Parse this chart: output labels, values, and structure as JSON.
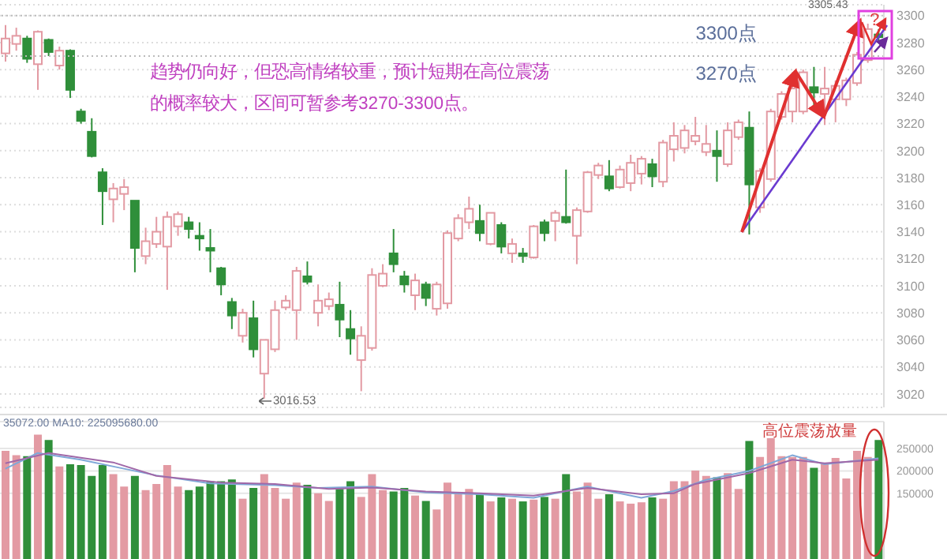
{
  "chart_data": [
    {
      "type": "candlestick",
      "categories": [
        null,
        null,
        null,
        null,
        null,
        null,
        null,
        null,
        null,
        null,
        null,
        null,
        null,
        null,
        null,
        null,
        null,
        null,
        null,
        null,
        null,
        null,
        null,
        null,
        null,
        null,
        null,
        null,
        null,
        null,
        null,
        null,
        null,
        null,
        null,
        null,
        null,
        null,
        null,
        null,
        null,
        null,
        null,
        null,
        null,
        null,
        null,
        null,
        null,
        null,
        null,
        null,
        null,
        null,
        null,
        null,
        null,
        null,
        null,
        null,
        null,
        null,
        null,
        null,
        null,
        null,
        null,
        null,
        null,
        null,
        null,
        null,
        null,
        null,
        null,
        null,
        null,
        null,
        null,
        null,
        null,
        null
      ],
      "ohlc": [
        [
          3272,
          3293,
          3266,
          3283
        ],
        [
          3279,
          3291,
          3274,
          3285
        ],
        [
          3283,
          3285,
          3265,
          3268
        ],
        [
          3264,
          3289,
          3245,
          3288
        ],
        [
          3282,
          3283,
          3270,
          3273
        ],
        [
          3263,
          3277,
          3260,
          3274
        ],
        [
          3274,
          3275,
          3239,
          3245
        ],
        [
          3229,
          3231,
          3220,
          3222
        ],
        [
          3214,
          3224,
          3195,
          3196
        ],
        [
          3184,
          3187,
          3145,
          3170
        ],
        [
          3164,
          3176,
          3147,
          3172
        ],
        [
          3168,
          3179,
          3156,
          3173
        ],
        [
          3163,
          3163,
          3110,
          3128
        ],
        [
          3122,
          3143,
          3116,
          3133
        ],
        [
          3131,
          3151,
          3128,
          3140
        ],
        [
          3129,
          3155,
          3097,
          3151
        ],
        [
          3144,
          3155,
          3137,
          3153
        ],
        [
          3147,
          3151,
          3135,
          3142
        ],
        [
          3137,
          3147,
          3126,
          3135
        ],
        [
          3128,
          3142,
          3110,
          3126
        ],
        [
          3113,
          3114,
          3093,
          3101
        ],
        [
          3088,
          3091,
          3068,
          3078
        ],
        [
          3063,
          3083,
          3058,
          3080
        ],
        [
          3076,
          3089,
          3047,
          3053
        ],
        [
          3035,
          3060,
          3016.53,
          3060
        ],
        [
          3053,
          3089,
          3051,
          3082
        ],
        [
          3084,
          3093,
          3082,
          3089
        ],
        [
          3082,
          3114,
          3060,
          3111
        ],
        [
          3107,
          3118,
          3101,
          3103
        ],
        [
          3080,
          3101,
          3070,
          3089
        ],
        [
          3085,
          3095,
          3082,
          3090
        ],
        [
          3086,
          3103,
          3062,
          3075
        ],
        [
          3068,
          3082,
          3049,
          3061
        ],
        [
          3045,
          3070,
          3022,
          3063
        ],
        [
          3054,
          3113,
          3052,
          3108
        ],
        [
          3100,
          3116,
          3099,
          3109
        ],
        [
          3124,
          3142,
          3110,
          3116
        ],
        [
          3107,
          3111,
          3095,
          3101
        ],
        [
          3093,
          3109,
          3082,
          3104
        ],
        [
          3101,
          3103,
          3085,
          3091
        ],
        [
          3083,
          3103,
          3078,
          3101
        ],
        [
          3087,
          3141,
          3083,
          3139
        ],
        [
          3135,
          3153,
          3133,
          3150
        ],
        [
          3147,
          3166,
          3142,
          3157
        ],
        [
          3148,
          3160,
          3133,
          3139
        ],
        [
          3131,
          3154,
          3130,
          3154
        ],
        [
          3145,
          3147,
          3124,
          3129
        ],
        [
          3124,
          3135,
          3117,
          3131
        ],
        [
          3124,
          3128,
          3117,
          3122
        ],
        [
          3121,
          3145,
          3120,
          3144
        ],
        [
          3147,
          3149,
          3133,
          3139
        ],
        [
          3148,
          3156,
          3133,
          3154
        ],
        [
          3151,
          3186,
          3146,
          3147
        ],
        [
          3137,
          3158,
          3116,
          3156
        ],
        [
          3155,
          3185,
          3154,
          3184
        ],
        [
          3182,
          3191,
          3179,
          3189
        ],
        [
          3181,
          3193,
          3170,
          3172
        ],
        [
          3173,
          3189,
          3172,
          3186
        ],
        [
          3176,
          3197,
          3170,
          3191
        ],
        [
          3183,
          3196,
          3175,
          3194
        ],
        [
          3190,
          3194,
          3173,
          3181
        ],
        [
          3177,
          3208,
          3173,
          3206
        ],
        [
          3201,
          3221,
          3192,
          3211
        ],
        [
          3202,
          3219,
          3198,
          3215
        ],
        [
          3207,
          3225,
          3204,
          3211
        ],
        [
          3199,
          3219,
          3196,
          3205
        ],
        [
          3200,
          3215,
          3177,
          3196
        ],
        [
          3190,
          3221,
          3188,
          3215
        ],
        [
          3210,
          3223,
          3208,
          3221
        ],
        [
          3217,
          3229,
          3138,
          3175
        ],
        [
          3158,
          3187,
          3154,
          3185
        ],
        [
          3179,
          3231,
          3177,
          3229
        ],
        [
          3225,
          3244,
          3223,
          3242
        ],
        [
          3229,
          3258,
          3221,
          3246
        ],
        [
          3229,
          3260,
          3227,
          3258
        ],
        [
          3247,
          3262,
          3231,
          3243
        ],
        [
          3242,
          3262,
          3219,
          3246
        ],
        [
          3238,
          3252,
          3221,
          3248
        ],
        [
          3238,
          3254,
          3233,
          3252
        ],
        [
          3250,
          3273,
          3248,
          3271
        ],
        [
          3267,
          3294,
          3265,
          3290
        ],
        [
          3286,
          3290,
          3281,
          3284
        ]
      ],
      "colors": [
        "#e39aa3",
        "#e39aa3",
        "#2f8f3a",
        "#e39aa3",
        "#2f8f3a",
        "#e39aa3",
        "#2f8f3a",
        "#2f8f3a",
        "#2f8f3a",
        "#2f8f3a",
        "#e39aa3",
        "#e39aa3",
        "#2f8f3a",
        "#e39aa3",
        "#e39aa3",
        "#e39aa3",
        "#e39aa3",
        "#2f8f3a",
        "#2f8f3a",
        "#2f8f3a",
        "#2f8f3a",
        "#2f8f3a",
        "#e39aa3",
        "#2f8f3a",
        "#e39aa3",
        "#e39aa3",
        "#e39aa3",
        "#e39aa3",
        "#2f8f3a",
        "#e39aa3",
        "#e39aa3",
        "#2f8f3a",
        "#2f8f3a",
        "#e39aa3",
        "#e39aa3",
        "#e39aa3",
        "#2f8f3a",
        "#2f8f3a",
        "#e39aa3",
        "#2f8f3a",
        "#e39aa3",
        "#e39aa3",
        "#e39aa3",
        "#e39aa3",
        "#2f8f3a",
        "#e39aa3",
        "#2f8f3a",
        "#e39aa3",
        "#2f8f3a",
        "#e39aa3",
        "#2f8f3a",
        "#e39aa3",
        "#2f8f3a",
        "#e39aa3",
        "#e39aa3",
        "#e39aa3",
        "#2f8f3a",
        "#e39aa3",
        "#e39aa3",
        "#e39aa3",
        "#2f8f3a",
        "#e39aa3",
        "#e39aa3",
        "#e39aa3",
        "#e39aa3",
        "#e39aa3",
        "#2f8f3a",
        "#e39aa3",
        "#e39aa3",
        "#2f8f3a",
        "#e39aa3",
        "#e39aa3",
        "#e39aa3",
        "#e39aa3",
        "#e39aa3",
        "#2f8f3a",
        "#e39aa3",
        "#e39aa3",
        "#e39aa3",
        "#e39aa3",
        "#e39aa3",
        "#2f8f3a"
      ],
      "ylim": [
        3010,
        3308
      ],
      "yticks": [
        3020,
        3040,
        3060,
        3080,
        3100,
        3120,
        3140,
        3160,
        3180,
        3200,
        3220,
        3240,
        3260,
        3280,
        3300
      ],
      "grid": "y",
      "tick_labels": "y",
      "ref_lines": [
        {
          "axis": "y",
          "value": 3300,
          "label": "3300点",
          "color": "#bbbbbb",
          "line_style": "dotted"
        },
        {
          "axis": "y",
          "value": 3270,
          "label": "3270点",
          "color": "#bbbbbb",
          "line_style": "dotted"
        }
      ],
      "annotations": [
        "趋势仍向好，但恐高情绪较重，预计短期在高位震荡的概率较大，区间可暂参考3270-3300点。",
        "3016.53",
        "3305.43",
        "?"
      ]
    },
    {
      "type": "bar",
      "categories": [
        null,
        null,
        null,
        null,
        null,
        null,
        null,
        null,
        null,
        null,
        null,
        null,
        null,
        null,
        null,
        null,
        null,
        null,
        null,
        null,
        null,
        null,
        null,
        null,
        null,
        null,
        null,
        null,
        null,
        null,
        null,
        null,
        null,
        null,
        null,
        null,
        null,
        null,
        null,
        null,
        null,
        null,
        null,
        null,
        null,
        null,
        null,
        null,
        null,
        null,
        null,
        null,
        null,
        null,
        null,
        null,
        null,
        null,
        null,
        null,
        null,
        null,
        null,
        null,
        null,
        null,
        null,
        null,
        null,
        null,
        null,
        null,
        null,
        null,
        null,
        null,
        null,
        null,
        null,
        null,
        null,
        null
      ],
      "series": [
        {
          "type": "bar",
          "values": [
            245000,
            235000,
            233000,
            281000,
            269000,
            210000,
            215000,
            213000,
            189000,
            213000,
            193000,
            165000,
            189000,
            157000,
            171000,
            213000,
            165000,
            157000,
            165000,
            177000,
            177000,
            181000,
            138000,
            162000,
            193000,
            162000,
            138000,
            174000,
            169000,
            150000,
            133000,
            160000,
            177000,
            142000,
            193000,
            157000,
            154000,
            162000,
            145000,
            133000,
            114000,
            174000,
            148000,
            160000,
            150000,
            132000,
            141000,
            138000,
            132000,
            136000,
            142000,
            138000,
            193000,
            154000,
            174000,
            138000,
            148000,
            132000,
            127000,
            130000,
            141000,
            138000,
            177000,
            177000,
            201000,
            189000,
            186000,
            195000,
            160000,
            267000,
            231000,
            273000,
            233000,
            231000,
            231000,
            207000,
            217000,
            229000,
            183000,
            245000,
            231000,
            269000
          ],
          "colors": [
            "#e39aa3",
            "#e39aa3",
            "#2f8f3a",
            "#e39aa3",
            "#2f8f3a",
            "#e39aa3",
            "#2f8f3a",
            "#2f8f3a",
            "#2f8f3a",
            "#2f8f3a",
            "#e39aa3",
            "#e39aa3",
            "#2f8f3a",
            "#e39aa3",
            "#e39aa3",
            "#e39aa3",
            "#e39aa3",
            "#2f8f3a",
            "#2f8f3a",
            "#2f8f3a",
            "#2f8f3a",
            "#2f8f3a",
            "#e39aa3",
            "#2f8f3a",
            "#e39aa3",
            "#e39aa3",
            "#e39aa3",
            "#e39aa3",
            "#2f8f3a",
            "#e39aa3",
            "#e39aa3",
            "#2f8f3a",
            "#2f8f3a",
            "#e39aa3",
            "#e39aa3",
            "#e39aa3",
            "#2f8f3a",
            "#2f8f3a",
            "#e39aa3",
            "#2f8f3a",
            "#e39aa3",
            "#e39aa3",
            "#e39aa3",
            "#e39aa3",
            "#2f8f3a",
            "#e39aa3",
            "#2f8f3a",
            "#e39aa3",
            "#2f8f3a",
            "#e39aa3",
            "#2f8f3a",
            "#e39aa3",
            "#2f8f3a",
            "#e39aa3",
            "#e39aa3",
            "#e39aa3",
            "#2f8f3a",
            "#e39aa3",
            "#e39aa3",
            "#e39aa3",
            "#2f8f3a",
            "#e39aa3",
            "#e39aa3",
            "#e39aa3",
            "#e39aa3",
            "#e39aa3",
            "#2f8f3a",
            "#e39aa3",
            "#e39aa3",
            "#2f8f3a",
            "#e39aa3",
            "#e39aa3",
            "#e39aa3",
            "#e39aa3",
            "#e39aa3",
            "#2f8f3a",
            "#e39aa3",
            "#e39aa3",
            "#e39aa3",
            "#e39aa3",
            "#e39aa3",
            "#2f8f3a"
          ]
        },
        {
          "type": "line",
          "color": "#7fa8d8",
          "values": [
            205000,
            null,
            null,
            240000,
            null,
            null,
            null,
            225000,
            null,
            null,
            null,
            205000,
            null,
            null,
            190000,
            null,
            null,
            null,
            null,
            172000,
            null,
            null,
            null,
            null,
            null,
            168000,
            null,
            null,
            null,
            162000,
            null,
            null,
            null,
            null,
            165000,
            null,
            null,
            null,
            null,
            152000,
            null,
            null,
            null,
            null,
            148000,
            null,
            null,
            null,
            null,
            140000,
            null,
            null,
            null,
            null,
            165000,
            null,
            null,
            null,
            null,
            140000,
            null,
            null,
            155000,
            null,
            null,
            180000,
            null,
            null,
            null,
            200000,
            null,
            null,
            null,
            235000,
            null,
            null,
            215000,
            null,
            null,
            null,
            null,
            228000
          ]
        },
        {
          "type": "line",
          "color": "#a068a8",
          "values": [
            217000,
            null,
            null,
            null,
            240000,
            null,
            null,
            null,
            null,
            null,
            219000,
            null,
            null,
            null,
            189000,
            null,
            null,
            null,
            null,
            null,
            174000,
            null,
            null,
            null,
            null,
            171000,
            null,
            null,
            null,
            null,
            160000,
            null,
            null,
            null,
            163000,
            null,
            null,
            null,
            null,
            154000,
            null,
            null,
            null,
            null,
            150000,
            null,
            null,
            null,
            null,
            145000,
            null,
            null,
            null,
            null,
            162000,
            null,
            null,
            null,
            null,
            148000,
            null,
            null,
            150000,
            null,
            171000,
            null,
            null,
            null,
            null,
            195000,
            null,
            null,
            null,
            225000,
            null,
            null,
            217000,
            null,
            null,
            null,
            null,
            225000
          ]
        }
      ],
      "ylim": [
        0,
        310000
      ],
      "yticks": [
        150000,
        200000,
        250000
      ],
      "grid": "y",
      "tick_labels": "y",
      "annotations": [
        "35072.00 MA10: 225095680.00",
        "高位震荡放量"
      ]
    }
  ]
}
